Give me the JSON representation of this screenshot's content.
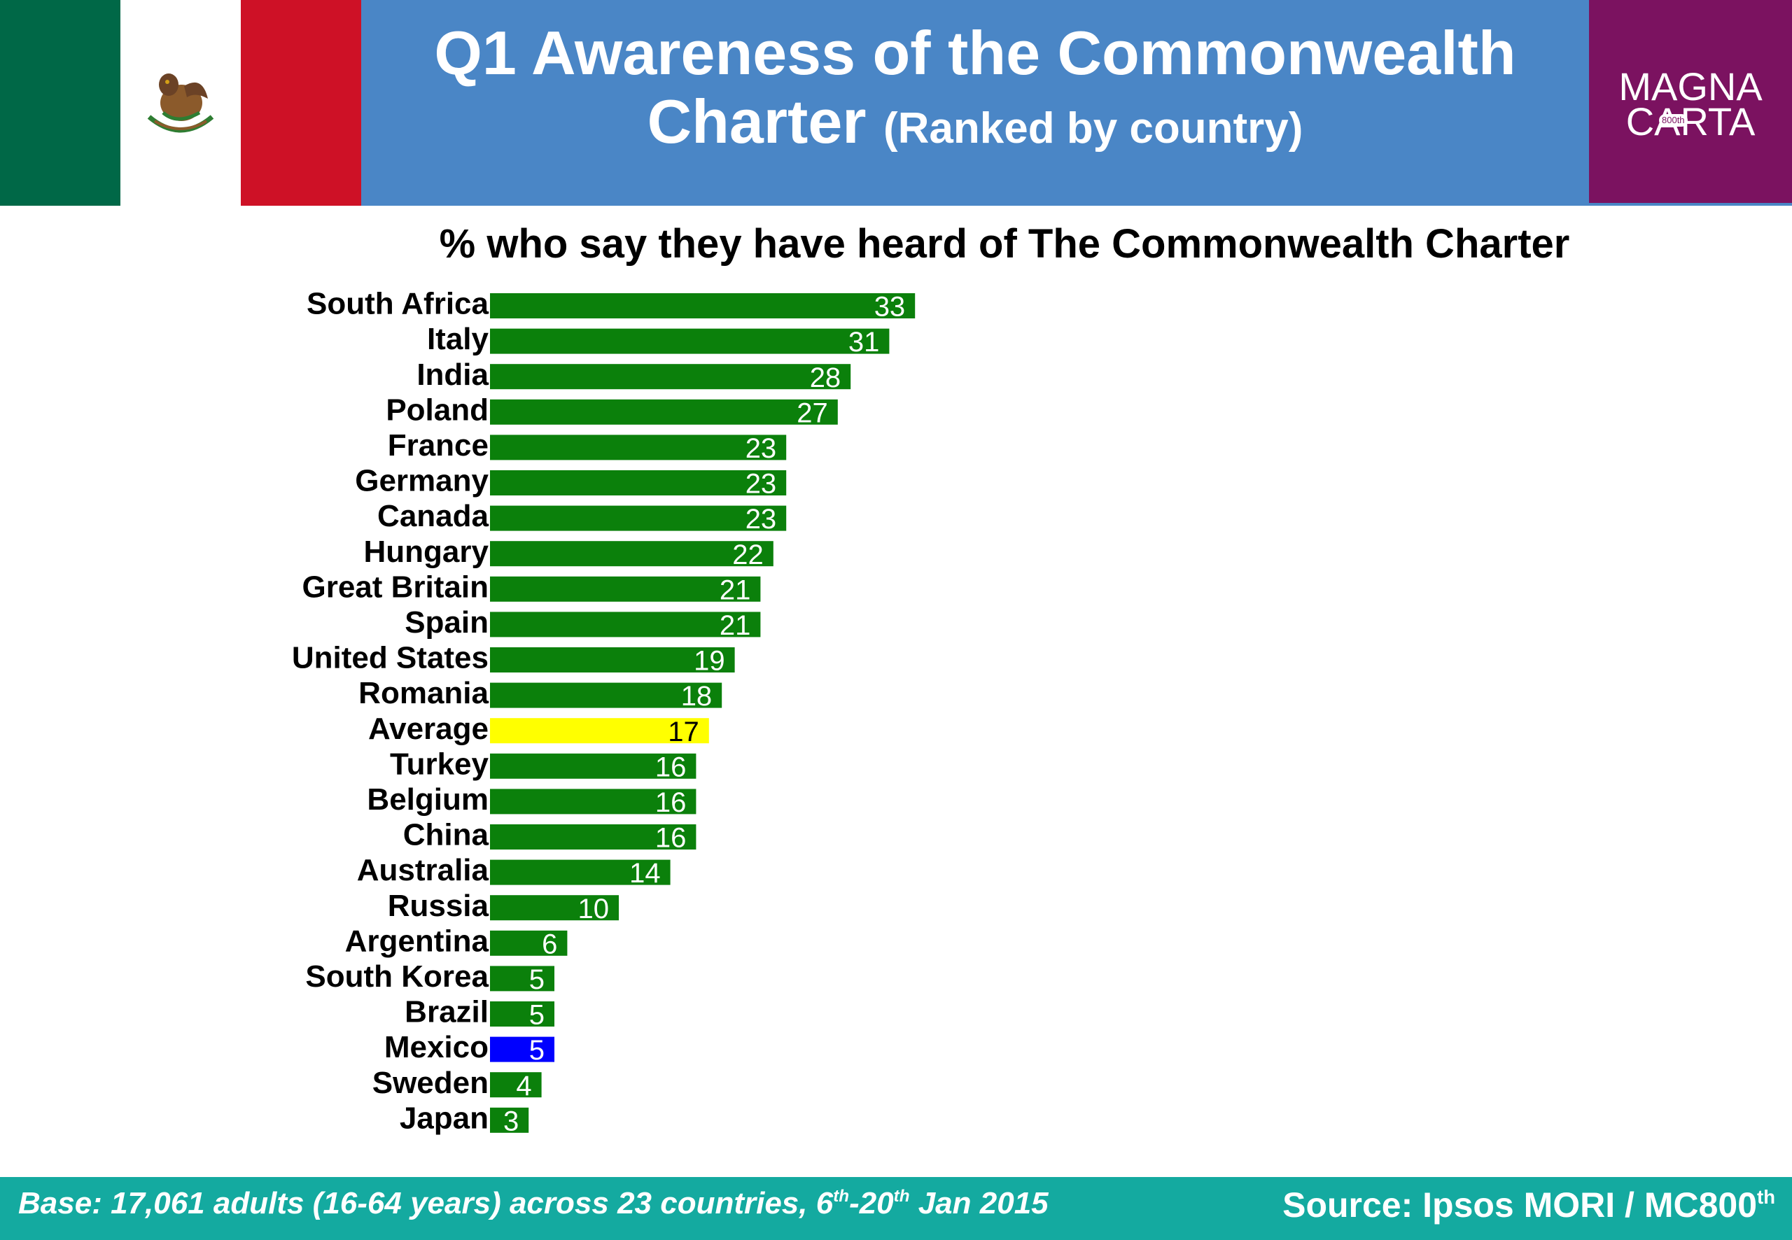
{
  "header": {
    "title_line1": "Q1 Awareness of the Commonwealth",
    "title_line2_main": "Charter",
    "title_line2_sub": "(Ranked by country)",
    "flag": "mexico-flag",
    "logo_line1": "MAGNA",
    "logo_line2": "CARTA",
    "logo_badge": "800th",
    "colors": {
      "header_bg": "#4a86c6",
      "logo_bg": "#7b1260"
    }
  },
  "chart_data": {
    "type": "bar",
    "orientation": "horizontal",
    "title": "% who say they have heard of The Commonwealth Charter",
    "categories": [
      "South Africa",
      "Italy",
      "India",
      "Poland",
      "France",
      "Germany",
      "Canada",
      "Hungary",
      "Great Britain",
      "Spain",
      "United States",
      "Romania",
      "Average",
      "Turkey",
      "Belgium",
      "China",
      "Australia",
      "Russia",
      "Argentina",
      "South Korea",
      "Brazil",
      "Mexico",
      "Sweden",
      "Japan"
    ],
    "values": [
      33,
      31,
      28,
      27,
      23,
      23,
      23,
      22,
      21,
      21,
      19,
      18,
      17,
      16,
      16,
      16,
      14,
      10,
      6,
      5,
      5,
      5,
      4,
      3
    ],
    "data_labels": true,
    "xlim": [
      0,
      100
    ],
    "grid": false,
    "colors": {
      "default": "#0b800b",
      "Average": "#ffff00",
      "Mexico": "#0000ff"
    },
    "label_colors": {
      "default": "#ffffff",
      "Average": "#000000"
    }
  },
  "footer": {
    "base_prefix": "Base: 17,061 adults (16-64 years) across 23 countries, 6",
    "base_sup1": "th",
    "base_mid": "-20",
    "base_sup2": "th",
    "base_suffix": " Jan 2015",
    "source_prefix": "Source: Ipsos MORI / MC800",
    "source_sup": "th",
    "bg_color": "#14aaa0"
  }
}
